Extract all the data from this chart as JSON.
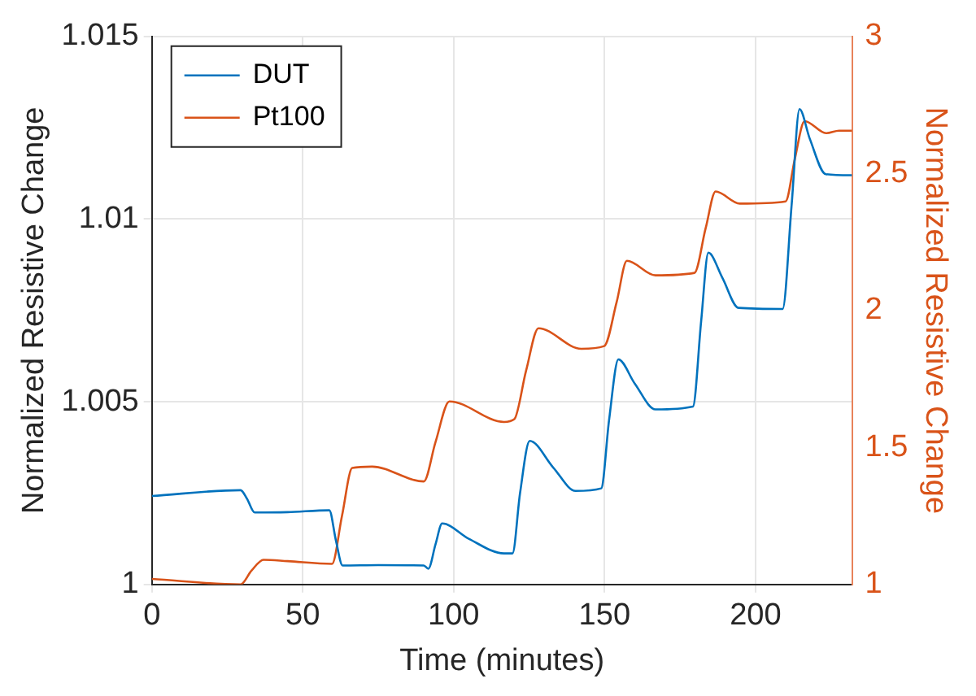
{
  "chart_data": {
    "type": "line",
    "xlabel": "Time (minutes)",
    "ylabel": "Normalized Resistive Change",
    "y2label": "Normalized Resistive Change",
    "xlim": [
      0,
      232
    ],
    "xticks": [
      0,
      50,
      100,
      150,
      200
    ],
    "ylim": [
      1,
      1.015
    ],
    "yticks": [
      1,
      1.005,
      1.01,
      1.015
    ],
    "y2lim": [
      1,
      3
    ],
    "y2ticks": [
      1,
      1.5,
      2,
      2.5,
      3
    ],
    "grid": true,
    "legend": "top left",
    "marker": "none",
    "line_style": "solid",
    "series": [
      {
        "name": "DUT",
        "color": "#0072bd",
        "x": [
          0,
          29.4,
          31.5,
          34.1,
          45,
          58.8,
          61,
          63.2,
          75,
          90.1,
          91.6,
          94,
          96.2,
          105,
          116.7,
          119.5,
          122,
          125.2,
          133,
          140.4,
          148.9,
          151.5,
          154.6,
          160,
          166.9,
          179.3,
          182,
          184.4,
          189,
          194.4,
          209,
          212,
          214.6,
          218,
          223.3,
          232
        ],
        "values": [
          1.00242,
          1.00258,
          1.00235,
          1.00197,
          1.00198,
          1.00203,
          1.0012,
          1.00052,
          1.00053,
          1.00052,
          1.00043,
          1.0011,
          1.00167,
          1.00125,
          1.00085,
          1.00085,
          1.0025,
          1.00393,
          1.0032,
          1.00256,
          1.00263,
          1.0045,
          1.00616,
          1.0055,
          1.00479,
          1.00487,
          1.0072,
          1.00908,
          1.0084,
          1.00757,
          1.00754,
          1.0104,
          1.01301,
          1.0122,
          1.01123,
          1.0112
        ]
      },
      {
        "name": "Pt100",
        "color": "#d95319",
        "axis": "y2",
        "x": [
          0,
          29.4,
          33,
          37,
          45,
          59.7,
          63,
          66.4,
          73,
          90.1,
          94,
          98.6,
          116.7,
          120.1,
          124,
          128.1,
          142.3,
          149.9,
          154,
          157.4,
          166.9,
          179.8,
          183.5,
          186.8,
          194.8,
          210,
          213,
          216.3,
          223.4,
          227.7,
          232
        ],
        "values": [
          1.02,
          1,
          1.05,
          1.09,
          1.085,
          1.075,
          1.25,
          1.425,
          1.43,
          1.376,
          1.52,
          1.668,
          1.593,
          1.603,
          1.78,
          1.935,
          1.86,
          1.87,
          2.03,
          2.181,
          2.128,
          2.137,
          2.3,
          2.434,
          2.39,
          2.398,
          2.55,
          2.691,
          2.647,
          2.656,
          2.656
        ]
      }
    ]
  }
}
